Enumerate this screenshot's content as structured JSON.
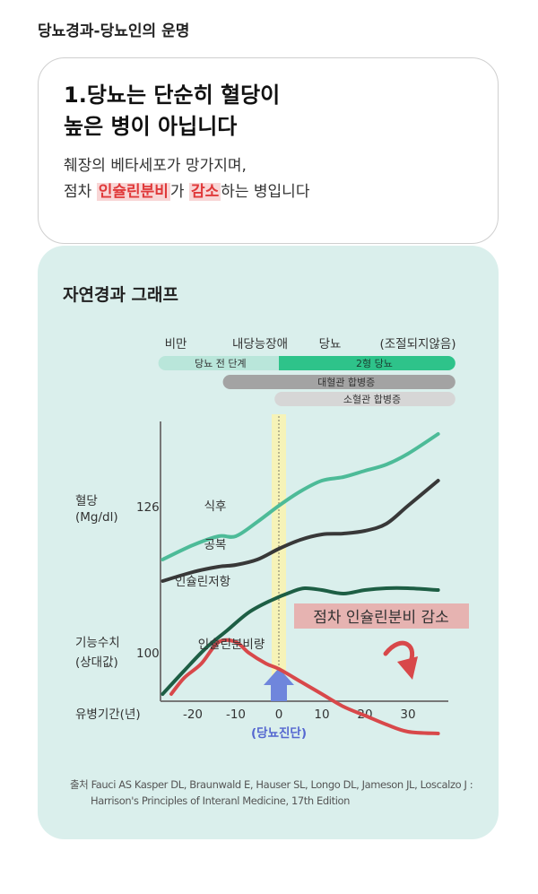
{
  "page": {
    "heading": "당뇨경과-당뇨인의 운명"
  },
  "card": {
    "title_line1": "1.당뇨는 단순히 혈당이",
    "title_line2": "높은 병이 아닙니다",
    "body_line1": "췌장의 베타세포가 망가지며,",
    "body_line2_prefix": "점차 ",
    "body_line2_hl1": "인슐린분비",
    "body_line2_mid": "가 ",
    "body_line2_hl2": "감소",
    "body_line2_suffix": "하는 병입니다"
  },
  "panel": {
    "title": "자연경과 그래프",
    "source_line1": "출처 Fauci AS Kasper DL, Braunwald E, Hauser SL, Longo DL, Jameson JL, Loscalzo J :",
    "source_line2": "Harrison's Principles of Interanl Medicine, 17th Edition"
  },
  "chart_data": {
    "type": "line",
    "stages": {
      "labels": [
        "비만",
        "내당능장애",
        "당뇨",
        "(조절되지않음)"
      ],
      "bars": [
        {
          "label": "당뇨 전 단계",
          "x_start": -28,
          "x_end": 0,
          "color": "#b9e6da"
        },
        {
          "label": "2형 당뇨",
          "x_start": 0,
          "x_end": 41,
          "color": "#2ec38a"
        },
        {
          "label": "대혈관 합병증",
          "x_start": -13,
          "x_end": 41,
          "color": "#a3a3a3"
        },
        {
          "label": "소혈관 합병증",
          "x_start": -1,
          "x_end": 41,
          "color": "#d6d6d6"
        }
      ]
    },
    "xlabel": "유병기간(년)",
    "x_ticks": [
      -20,
      -10,
      0,
      10,
      20,
      30
    ],
    "x_range": [
      -30,
      42
    ],
    "diagnosis_x": 0,
    "diagnosis_label": "(당뇨진단)",
    "upper_panel": {
      "ylabel": "혈당\n(Mg/dl)",
      "ylabel_line1": "혈당",
      "ylabel_line2": "(Mg/dl)",
      "ytick": "126",
      "series": [
        {
          "name": "식후",
          "color": "#4dbb98",
          "x": [
            -27,
            -20,
            -14,
            -10,
            -5,
            0,
            5,
            10,
            15,
            20,
            25,
            30,
            37
          ],
          "y": [
            146,
            130,
            120,
            120,
            104,
            86,
            70,
            58,
            54,
            47,
            40,
            28,
            6
          ]
        },
        {
          "name": "공복",
          "color": "#383838",
          "x": [
            -27,
            -20,
            -14,
            -10,
            -5,
            0,
            5,
            10,
            15,
            20,
            25,
            30,
            37
          ],
          "y": [
            170,
            160,
            154,
            152,
            146,
            134,
            124,
            118,
            117,
            114,
            106,
            86,
            58
          ]
        }
      ]
    },
    "lower_panel": {
      "ylabel": "기능수치\n(상대값)",
      "ylabel_line1": "기능수치",
      "ylabel_line2": "(상대값)",
      "ytick": "100",
      "series": [
        {
          "name": "인슐린저항",
          "color": "#1d5e44",
          "x": [
            -27,
            -22,
            -17,
            -12,
            -7,
            -2,
            3,
            6,
            10,
            15,
            20,
            25,
            30,
            37
          ],
          "y": [
            296,
            270,
            245,
            225,
            205,
            192,
            182,
            178,
            180,
            184,
            180,
            178,
            178,
            180
          ]
        },
        {
          "name": "인슐린분비량",
          "color": "#d8484a",
          "x": [
            -25,
            -22,
            -18,
            -14,
            -10,
            -7,
            -3,
            0,
            5,
            10,
            15,
            20,
            25,
            30,
            37
          ],
          "y": [
            296,
            278,
            262,
            238,
            238,
            250,
            262,
            268,
            282,
            296,
            310,
            320,
            330,
            338,
            340
          ]
        }
      ],
      "annotation": "점차 인슐린분비 감소"
    }
  }
}
